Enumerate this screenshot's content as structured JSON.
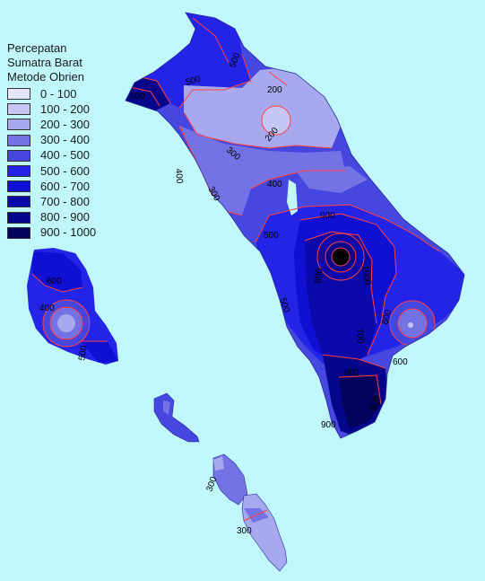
{
  "legend": {
    "title_lines": [
      "Percepatan",
      "Sumatra Barat",
      "Metode Obrien"
    ],
    "items": [
      {
        "label": "0 - 100",
        "color": "#e6e6fb"
      },
      {
        "label": "100 - 200",
        "color": "#c6c6f5"
      },
      {
        "label": "200 - 300",
        "color": "#a8a8ee"
      },
      {
        "label": "300 - 400",
        "color": "#7373e6"
      },
      {
        "label": "400 - 500",
        "color": "#4646e0"
      },
      {
        "label": "500 - 600",
        "color": "#2424e8"
      },
      {
        "label": "600 - 700",
        "color": "#1010d4"
      },
      {
        "label": "700 - 800",
        "color": "#0a0aaa"
      },
      {
        "label": "800 - 900",
        "color": "#06068a"
      },
      {
        "label": "900 - 1000",
        "color": "#03035e"
      }
    ]
  },
  "contour_labels": [
    "500",
    "500",
    "200",
    "200",
    "300",
    "400",
    "300",
    "400",
    "500",
    "900",
    "1000",
    "800",
    "700",
    "600",
    "600",
    "500",
    "800",
    "900",
    "600",
    "500",
    "600",
    "400",
    "500",
    "300",
    "300"
  ],
  "contour_color": "#ff4040"
}
